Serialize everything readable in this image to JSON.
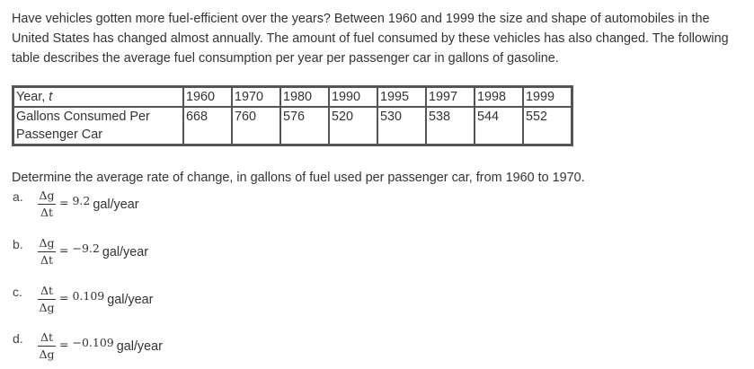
{
  "intro_text": "Have vehicles gotten more fuel-efficient over the years? Between 1960 and 1999 the size and shape of automobiles in the United States has changed almost annually. The amount of fuel consumed by these vehicles has also changed. The following table describes the average fuel consumption per year per passenger car in gallons of gasoline.",
  "table": {
    "row1_label_prefix": "Year, ",
    "row1_label_var": "t",
    "row2_label": "Gallons Consumed Per Passenger Car",
    "years": [
      "1960",
      "1970",
      "1980",
      "1990",
      "1995",
      "1997",
      "1998",
      "1999"
    ],
    "gallons": [
      "668",
      "760",
      "576",
      "520",
      "530",
      "538",
      "544",
      "552"
    ]
  },
  "question": "Determine the average rate of change, in gallons of fuel used per passenger car, from 1960 to 1970.",
  "options": [
    {
      "letter": "a.",
      "numerator": "Δg",
      "denominator": "Δt",
      "equals": "=",
      "value": "9.2",
      "unit": "gal/year"
    },
    {
      "letter": "b.",
      "numerator": "Δg",
      "denominator": "Δt",
      "equals": "=",
      "value": "−9.2",
      "unit": "gal/year"
    },
    {
      "letter": "c.",
      "numerator": "Δt",
      "denominator": "Δg",
      "equals": "=",
      "value": "0.109",
      "unit": "gal/year"
    },
    {
      "letter": "d.",
      "numerator": "Δt",
      "denominator": "Δg",
      "equals": "=",
      "value": "−0.109",
      "unit": "gal/year"
    }
  ]
}
